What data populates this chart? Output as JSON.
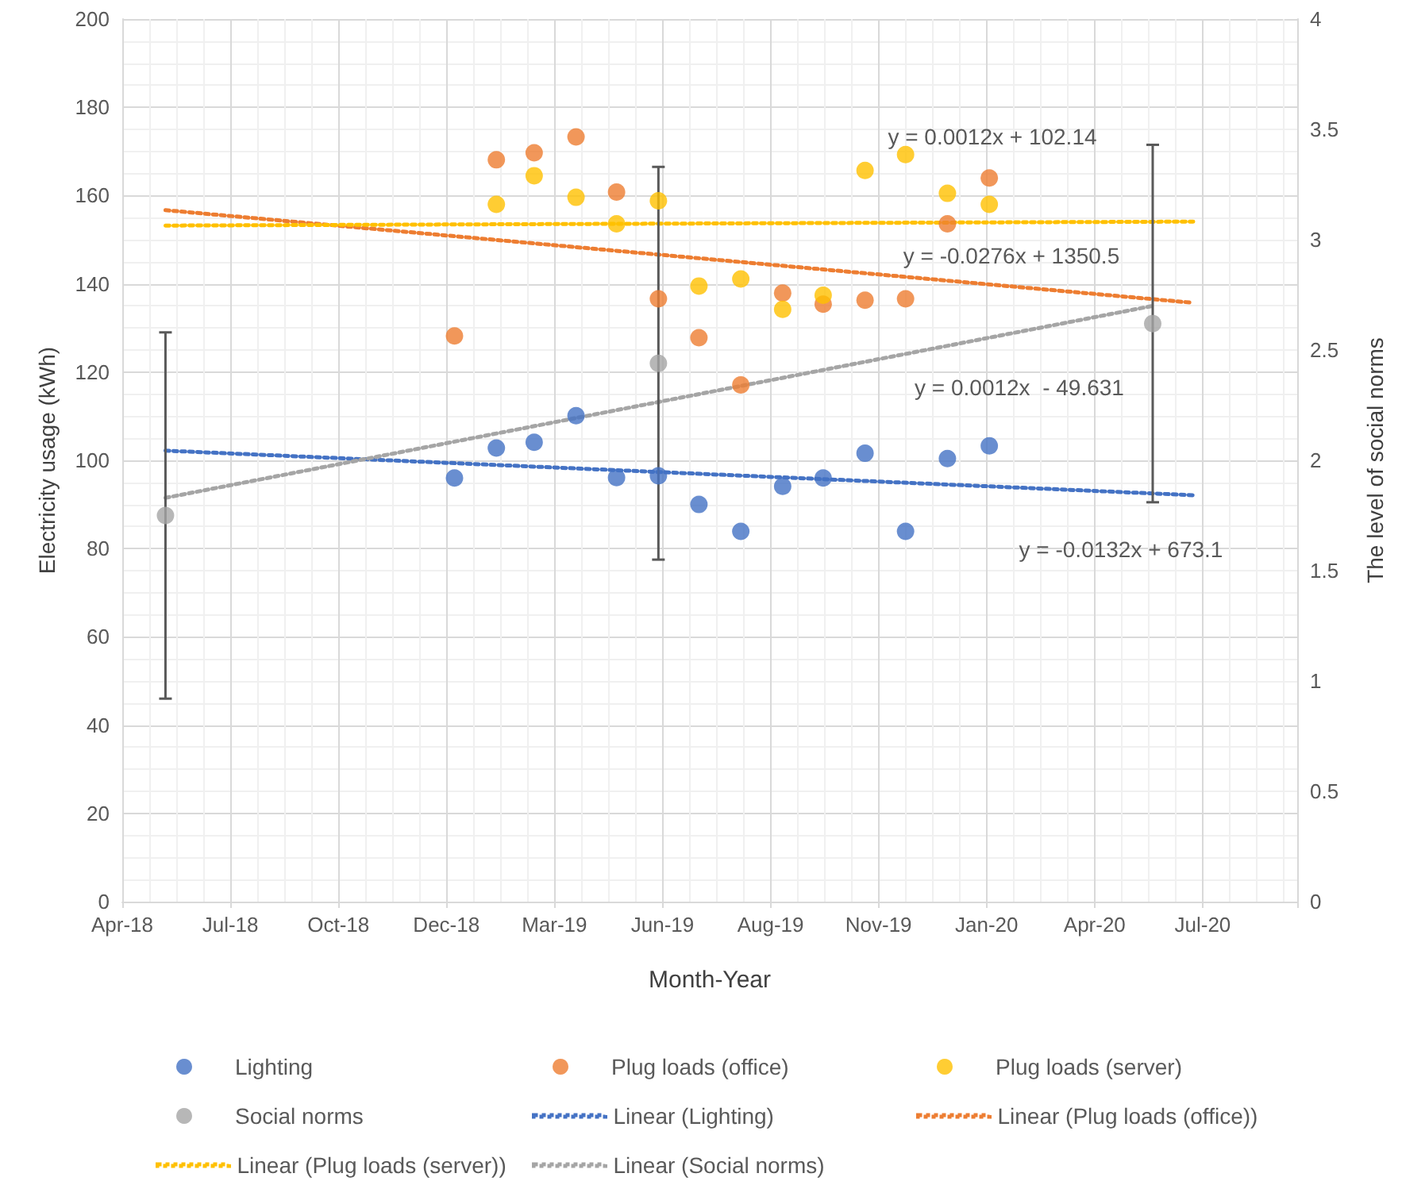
{
  "chart_data": {
    "type": "scatter",
    "xlabel": "Month-Year",
    "ylabel": "Electricity usage (kWh)",
    "y2label": "The level of social norms",
    "xlim": [
      "2018-04-30",
      "2020-09-16"
    ],
    "xticks": [
      {
        "value": "2018-04-30",
        "label": "Apr-18"
      },
      {
        "value": "2018-07-19",
        "label": "Jul-18"
      },
      {
        "value": "2018-10-07",
        "label": "Oct-18"
      },
      {
        "value": "2018-12-26",
        "label": "Dec-18"
      },
      {
        "value": "2019-03-16",
        "label": "Mar-19"
      },
      {
        "value": "2019-06-04",
        "label": "Jun-19"
      },
      {
        "value": "2019-08-23",
        "label": "Aug-19"
      },
      {
        "value": "2019-11-11",
        "label": "Nov-19"
      },
      {
        "value": "2020-01-30",
        "label": "Jan-20"
      },
      {
        "value": "2020-04-19",
        "label": "Apr-20"
      },
      {
        "value": "2020-07-08",
        "label": "Jul-20"
      }
    ],
    "ylim": [
      0,
      200
    ],
    "yticks": [
      0,
      20,
      40,
      60,
      80,
      100,
      120,
      140,
      160,
      180,
      200
    ],
    "y2lim": [
      0,
      4
    ],
    "y2ticks": [
      0,
      0.5,
      1,
      1.5,
      2,
      2.5,
      3,
      3.5,
      4
    ],
    "grid": true,
    "legend": "bottom",
    "series": [
      {
        "name": "Lighting",
        "marker": "circle",
        "color": "#4472c4",
        "x": [
          "2019-01-01",
          "2019-02-01",
          "2019-03-01",
          "2019-04-01",
          "2019-05-01",
          "2019-06-01",
          "2019-07-01",
          "2019-08-01",
          "2019-09-01",
          "2019-10-01",
          "2019-11-01",
          "2019-12-01",
          "2020-01-01",
          "2020-02-01"
        ],
        "values": [
          96.0,
          102.8,
          104.1,
          110.1,
          96.1,
          96.5,
          90.0,
          83.9,
          94.1,
          96.0,
          101.6,
          83.9,
          100.4,
          103.3
        ]
      },
      {
        "name": "Plug loads (office)",
        "marker": "circle",
        "color": "#ed7d31",
        "x": [
          "2019-01-01",
          "2019-02-01",
          "2019-03-01",
          "2019-04-01",
          "2019-05-01",
          "2019-06-01",
          "2019-07-01",
          "2019-08-01",
          "2019-09-01",
          "2019-10-01",
          "2019-11-01",
          "2019-12-01",
          "2020-01-01",
          "2020-02-01"
        ],
        "values": [
          128.2,
          168.1,
          169.7,
          173.3,
          160.8,
          136.6,
          127.8,
          117.1,
          137.9,
          135.4,
          136.3,
          136.6,
          153.6,
          164.0
        ]
      },
      {
        "name": "Plug loads (server)",
        "marker": "circle",
        "color": "#ffc000",
        "x": [
          "2019-02-01",
          "2019-03-01",
          "2019-04-01",
          "2019-05-01",
          "2019-06-01",
          "2019-07-01",
          "2019-08-01",
          "2019-09-01",
          "2019-10-01",
          "2019-11-01",
          "2019-12-01",
          "2020-01-01",
          "2020-02-01"
        ],
        "values": [
          158.0,
          164.5,
          159.6,
          153.6,
          158.8,
          139.5,
          141.1,
          134.2,
          137.4,
          165.7,
          169.3,
          160.5,
          158.0
        ]
      },
      {
        "name": "Social norms",
        "marker": "circle",
        "color": "#a5a5a5",
        "axis": "y2",
        "x": [
          "2018-06-01",
          "2019-06-01",
          "2020-06-01"
        ],
        "values": [
          1.75,
          2.44,
          2.62
        ],
        "errors": [
          0.83,
          0.89,
          0.81
        ]
      },
      {
        "name": "Linear (Lighting)",
        "type": "line",
        "marker": "none",
        "line_style": "dotted",
        "color": "#4472c4",
        "x": [
          "2018-06-01",
          "2020-07-01"
        ],
        "values": [
          102.2,
          92.1
        ]
      },
      {
        "name": "Linear (Plug loads (office))",
        "type": "line",
        "marker": "none",
        "line_style": "dotted",
        "color": "#ed7d31",
        "x": [
          "2018-06-01",
          "2020-07-01"
        ],
        "values": [
          156.7,
          135.7
        ]
      },
      {
        "name": "Linear (Plug loads (server))",
        "type": "line",
        "marker": "none",
        "line_style": "dotted",
        "color": "#ffc000",
        "x": [
          "2018-06-01",
          "2020-07-01"
        ],
        "values": [
          153.2,
          154.1
        ]
      },
      {
        "name": "Linear (Social norms)",
        "type": "line",
        "marker": "none",
        "line_style": "dotted",
        "color": "#a5a5a5",
        "axis": "y2",
        "x": [
          "2018-06-01",
          "2020-06-01"
        ],
        "values": [
          1.83,
          2.7
        ]
      }
    ],
    "annotations": [
      "y = 0.0012x + 102.14",
      "y = -0.0276x + 1350.5",
      "y = 0.0012x  - 49.631",
      "y = -0.0132x + 673.1"
    ]
  }
}
